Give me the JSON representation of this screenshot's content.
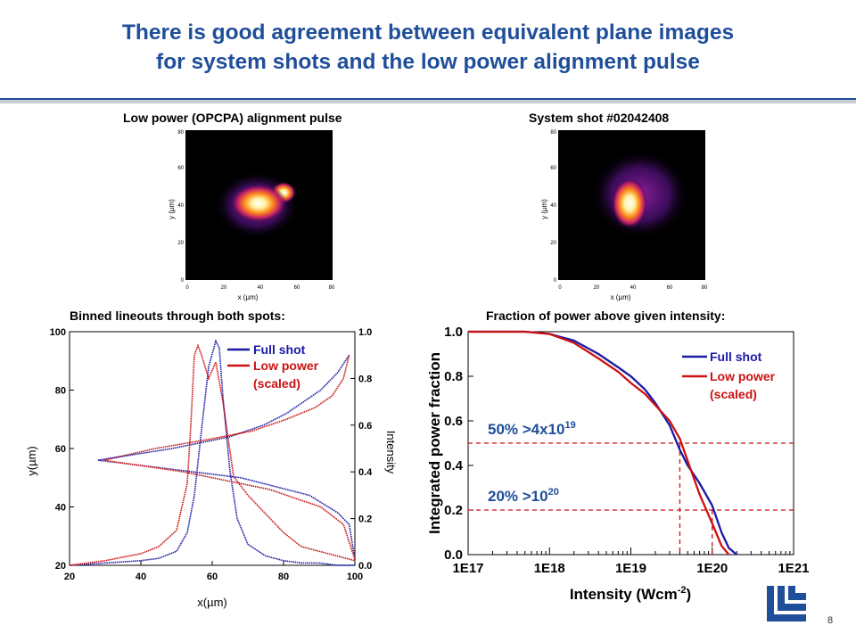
{
  "slide": {
    "title_line1": "There is good agreement between equivalent plane images",
    "title_line2": "for system shots and the low power alignment pulse",
    "page_number": "8",
    "logo": "LLNL"
  },
  "images": {
    "left_caption": "Low power (OPCPA) alignment pulse",
    "right_caption": "System shot #02042408",
    "x_label": "x (µm)",
    "y_label": "y (µm)",
    "ticks": [
      "0",
      "20",
      "40",
      "60",
      "80"
    ]
  },
  "chart_data": [
    {
      "type": "line",
      "title": "Binned lineouts through both spots:",
      "xlabel": "x(µm)",
      "ylabel": "y(µm)",
      "y2label": "Intensity",
      "xlim": [
        20,
        100
      ],
      "ylim": [
        20,
        100
      ],
      "y2lim": [
        0,
        1.0
      ],
      "x_ticks": [
        "20",
        "40",
        "60",
        "80",
        "100"
      ],
      "y_ticks": [
        "20",
        "40",
        "60",
        "80",
        "100"
      ],
      "y2_ticks": [
        "0.0",
        "0.2",
        "0.4",
        "0.6",
        "0.8",
        "1.0"
      ],
      "legend": [
        "Full shot",
        "Low power",
        "(scaled)"
      ],
      "legend_position": "top-right",
      "colors": {
        "full": "#1a1aa6",
        "low": "#cc1111"
      },
      "series": [
        {
          "name": "Full shot",
          "axis": "x-profile",
          "x": [
            20,
            30,
            40,
            45,
            50,
            53,
            55,
            57,
            59,
            61,
            62,
            63,
            65,
            67,
            70,
            75,
            80,
            85,
            90,
            95,
            100
          ],
          "y": [
            0.0,
            0.01,
            0.02,
            0.03,
            0.06,
            0.14,
            0.3,
            0.58,
            0.85,
            0.96,
            0.93,
            0.72,
            0.4,
            0.2,
            0.09,
            0.04,
            0.02,
            0.01,
            0.01,
            0.0,
            0.0
          ]
        },
        {
          "name": "Low power (scaled)",
          "axis": "x-profile",
          "x": [
            20,
            30,
            40,
            45,
            50,
            53,
            54,
            55,
            56,
            57,
            59,
            61,
            63,
            66,
            70,
            75,
            80,
            85,
            90,
            95,
            100
          ],
          "y": [
            0.0,
            0.02,
            0.05,
            0.08,
            0.15,
            0.35,
            0.6,
            0.9,
            0.94,
            0.9,
            0.8,
            0.87,
            0.7,
            0.38,
            0.3,
            0.22,
            0.14,
            0.08,
            0.06,
            0.04,
            0.02
          ]
        },
        {
          "name": "Full shot",
          "axis": "y-profile",
          "intensity": [
            0.0,
            0.005,
            0.01,
            0.03,
            0.08,
            0.2,
            0.45,
            0.32,
            0.22,
            0.16,
            0.12,
            0.09,
            0.06,
            0.03,
            0.01
          ],
          "y": [
            22,
            28,
            34,
            38,
            44,
            50,
            56,
            60,
            64,
            68,
            72,
            76,
            80,
            86,
            92
          ]
        },
        {
          "name": "Low power (scaled)",
          "axis": "y-profile",
          "intensity": [
            0.0,
            0.01,
            0.02,
            0.06,
            0.15,
            0.3,
            0.44,
            0.35,
            0.26,
            0.18,
            0.12,
            0.07,
            0.04,
            0.02,
            0.01
          ],
          "y": [
            22,
            28,
            34,
            40,
            46,
            52,
            56,
            60,
            63,
            66,
            70,
            74,
            78,
            84,
            92
          ]
        }
      ]
    },
    {
      "type": "line",
      "title": "Fraction of power above given intensity:",
      "xlabel": "Intensity  (Wcm-2)",
      "ylabel": "Integrated power fraction",
      "x_scale": "log",
      "xlim": [
        1e+17,
        1e+21
      ],
      "ylim": [
        0.0,
        1.0
      ],
      "x_ticks": [
        "1E17",
        "1E18",
        "1E19",
        "1E20",
        "1E21"
      ],
      "y_ticks": [
        "0.0",
        "0.2",
        "0.4",
        "0.6",
        "0.8",
        "1.0"
      ],
      "legend": [
        "Full shot",
        "Low power",
        "(scaled)"
      ],
      "legend_position": "top-right",
      "annotations": [
        {
          "text": "50% >4x10",
          "sup": "19",
          "level": 0.5,
          "x": 4e+19
        },
        {
          "text": "20% >10",
          "sup": "20",
          "level": 0.2,
          "x": 1e+20
        }
      ],
      "series": [
        {
          "name": "Full shot",
          "x": [
            1e+17,
            5e+17,
            1e+18,
            2e+18,
            4e+18,
            7e+18,
            1e+19,
            1.5e+19,
            2e+19,
            3e+19,
            4e+19,
            5e+19,
            7e+19,
            1e+20,
            1.3e+20,
            1.6e+20,
            2e+20
          ],
          "y": [
            1.0,
            1.0,
            0.99,
            0.96,
            0.9,
            0.84,
            0.8,
            0.74,
            0.68,
            0.58,
            0.47,
            0.4,
            0.32,
            0.22,
            0.1,
            0.03,
            0.0
          ]
        },
        {
          "name": "Low power (scaled)",
          "x": [
            1e+17,
            5e+17,
            1e+18,
            2e+18,
            4e+18,
            7e+18,
            1e+19,
            1.5e+19,
            2e+19,
            3e+19,
            4e+19,
            5e+19,
            7e+19,
            1e+20,
            1.3e+20,
            1.6e+20
          ],
          "y": [
            1.0,
            1.0,
            0.99,
            0.95,
            0.88,
            0.82,
            0.77,
            0.72,
            0.67,
            0.6,
            0.52,
            0.42,
            0.27,
            0.14,
            0.04,
            0.0
          ]
        }
      ]
    }
  ]
}
